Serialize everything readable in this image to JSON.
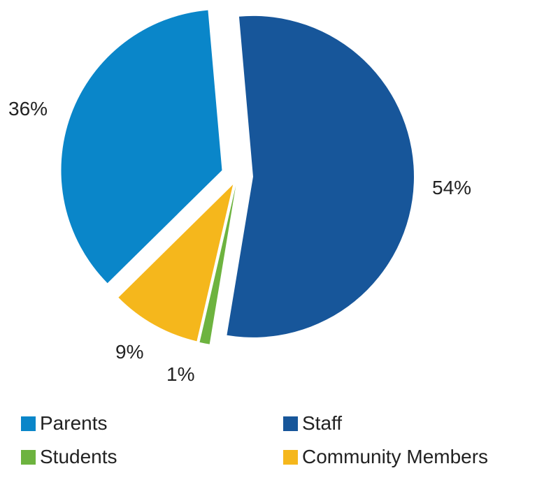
{
  "chart_data": {
    "type": "pie",
    "title": "",
    "slices": [
      {
        "name": "Staff",
        "value": 54,
        "label": "54%",
        "color": "#17569A"
      },
      {
        "name": "Students",
        "value": 1,
        "label": "1%",
        "color": "#6DB33F"
      },
      {
        "name": "Community Members",
        "value": 9,
        "label": "9%",
        "color": "#F5B71C"
      },
      {
        "name": "Parents",
        "value": 36,
        "label": "36%",
        "color": "#0A86C9"
      }
    ],
    "legend": [
      {
        "name": "Parents",
        "color": "#0A86C9"
      },
      {
        "name": "Staff",
        "color": "#17569A"
      },
      {
        "name": "Students",
        "color": "#6DB33F"
      },
      {
        "name": "Community Members",
        "color": "#F5B71C"
      }
    ],
    "exploded": true
  }
}
